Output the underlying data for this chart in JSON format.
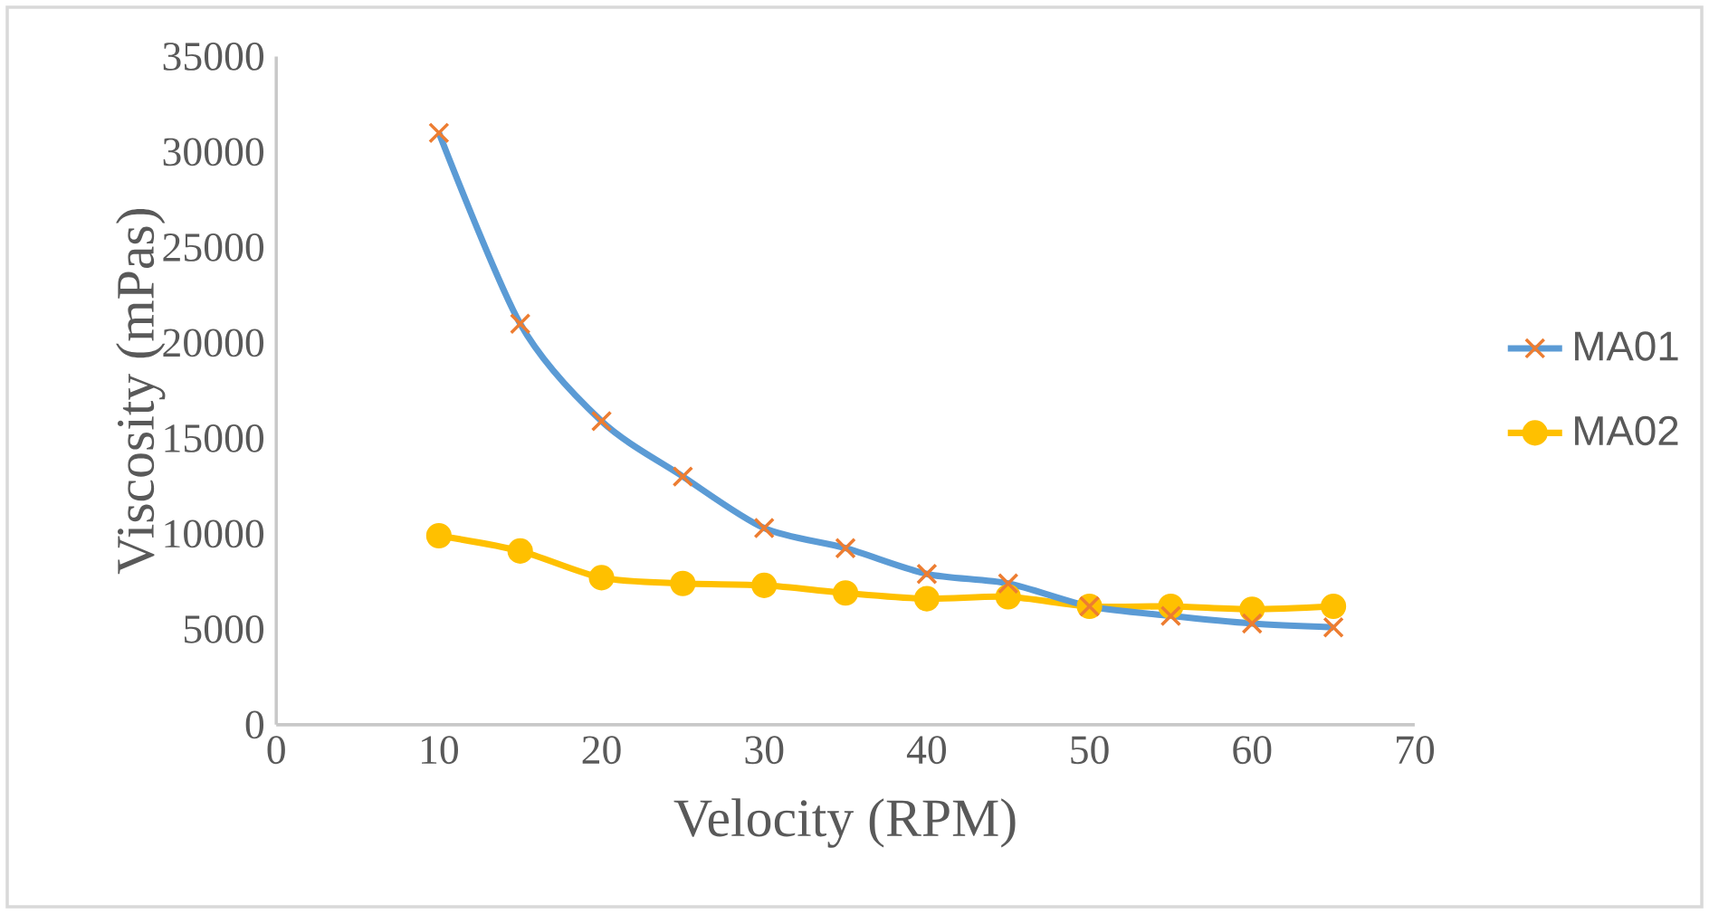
{
  "chart_data": {
    "type": "line",
    "xlabel": "Velocity  (RPM)",
    "ylabel": "Viscosity  (mPas)",
    "x": [
      10,
      15,
      20,
      25,
      30,
      35,
      40,
      45,
      50,
      55,
      60,
      65
    ],
    "series": [
      {
        "name": "MA01",
        "color": "#5b9bd5",
        "marker": "cross",
        "values": [
          31000,
          21000,
          15900,
          13000,
          10300,
          9250,
          7900,
          7400,
          6200,
          5700,
          5300,
          5100
        ]
      },
      {
        "name": "MA02",
        "color": "#ffc000",
        "marker": "circle",
        "values": [
          9900,
          9100,
          7700,
          7400,
          7300,
          6900,
          6600,
          6700,
          6200,
          6200,
          6050,
          6200
        ]
      }
    ],
    "xlim": [
      0,
      70
    ],
    "xticks": [
      0,
      10,
      20,
      30,
      40,
      50,
      60,
      70
    ],
    "ylim": [
      0,
      35000
    ],
    "yticks": [
      0,
      5000,
      10000,
      15000,
      20000,
      25000,
      30000,
      35000
    ],
    "grid": false,
    "legend": "right",
    "line_style": "solid"
  }
}
